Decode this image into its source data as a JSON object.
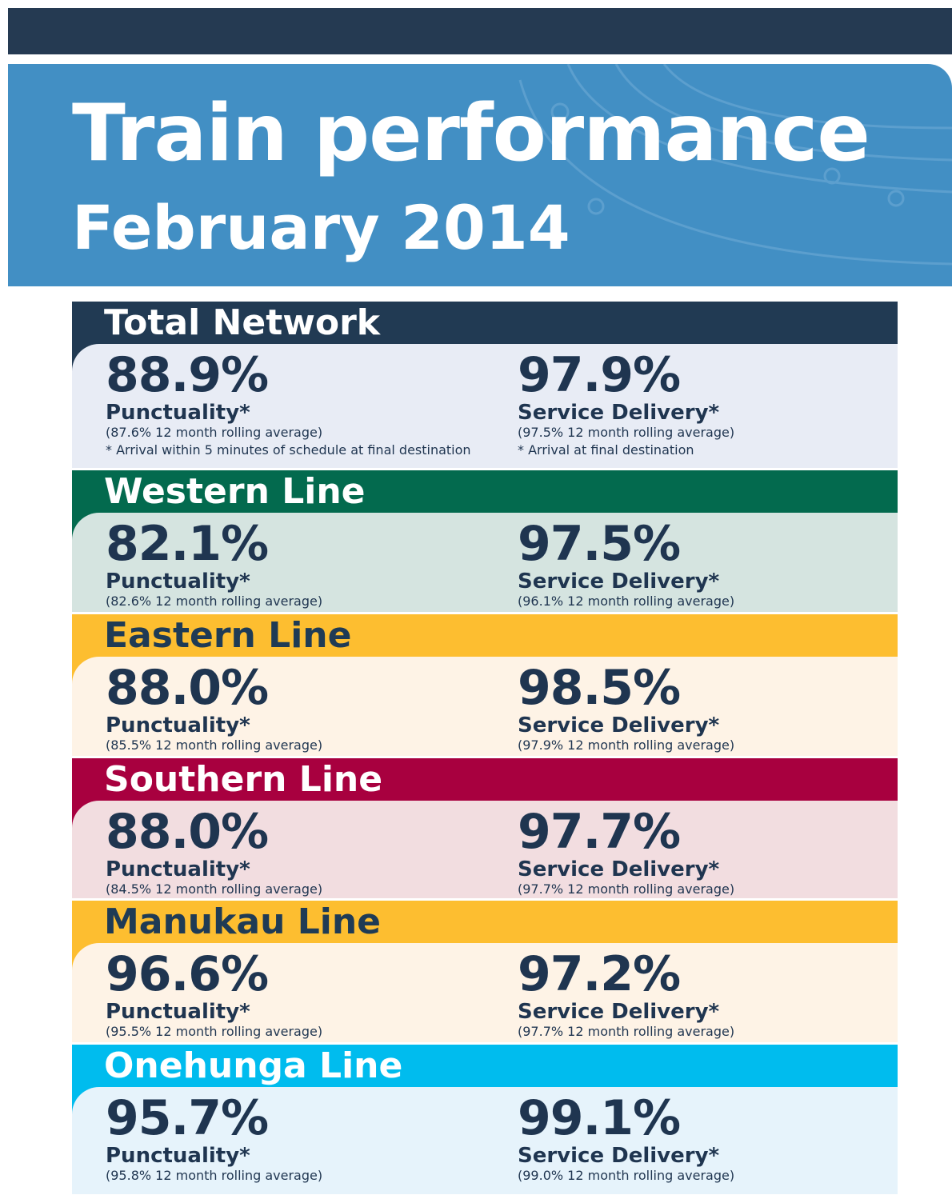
{
  "header": {
    "title": "Train performance",
    "subtitle": "February 2014"
  },
  "sections": [
    {
      "title": "Total Network",
      "punctuality": {
        "value": "88.9%",
        "label": "Punctuality*",
        "rolling": "(87.6% 12 month rolling average)",
        "note": "* Arrival within 5 minutes of schedule at final destination"
      },
      "service": {
        "value": "97.9%",
        "label": "Service Delivery*",
        "rolling": "(97.5% 12 month rolling average)",
        "note": "* Arrival at final destination"
      }
    },
    {
      "title": "Western Line",
      "punctuality": {
        "value": "82.1%",
        "label": "Punctuality*",
        "rolling": "(82.6% 12 month rolling average)"
      },
      "service": {
        "value": "97.5%",
        "label": "Service Delivery*",
        "rolling": "(96.1% 12 month rolling average)"
      }
    },
    {
      "title": "Eastern Line",
      "punctuality": {
        "value": "88.0%",
        "label": "Punctuality*",
        "rolling": "(85.5% 12 month rolling average)"
      },
      "service": {
        "value": "98.5%",
        "label": "Service Delivery*",
        "rolling": "(97.9% 12 month rolling average)"
      }
    },
    {
      "title": "Southern Line",
      "punctuality": {
        "value": "88.0%",
        "label": "Punctuality*",
        "rolling": "(84.5% 12 month rolling average)"
      },
      "service": {
        "value": "97.7%",
        "label": "Service Delivery*",
        "rolling": "(97.7% 12 month rolling average)"
      }
    },
    {
      "title": "Manukau Line",
      "punctuality": {
        "value": "96.6%",
        "label": "Punctuality*",
        "rolling": "(95.5% 12 month rolling average)"
      },
      "service": {
        "value": "97.2%",
        "label": "Service Delivery*",
        "rolling": "(97.7% 12 month rolling average)"
      }
    },
    {
      "title": "Onehunga Line",
      "punctuality": {
        "value": "95.7%",
        "label": "Punctuality*",
        "rolling": "(95.8% 12 month rolling average)"
      },
      "service": {
        "value": "99.1%",
        "label": "Service Delivery*",
        "rolling": "(99.0% 12 month rolling average)"
      }
    }
  ]
}
